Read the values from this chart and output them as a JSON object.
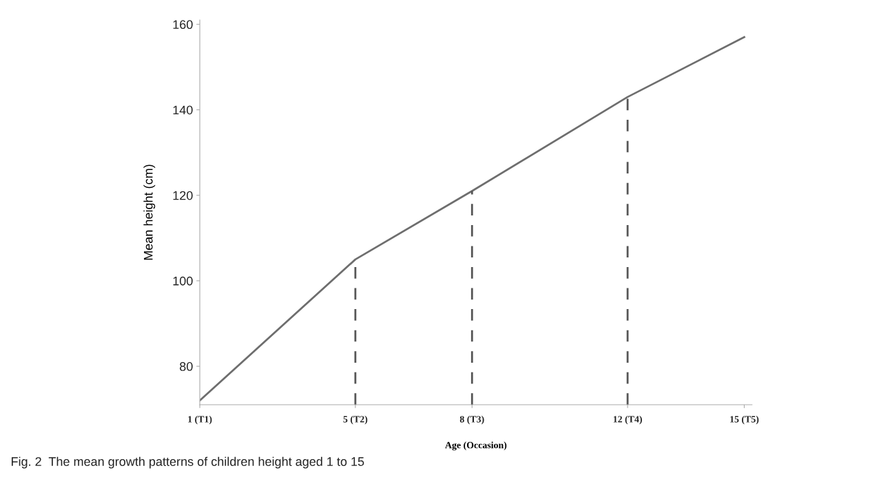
{
  "chart_data": {
    "type": "line",
    "xlabel": "Age (Occasion)",
    "ylabel": "Mean height (cm)",
    "categories": [
      "1 (T1)",
      null,
      null,
      null,
      "5 (T2)",
      null,
      null,
      "8 (T3)",
      null,
      null,
      null,
      "12 (T4)",
      null,
      null,
      "15 (T5)"
    ],
    "series": [
      {
        "color": "#6e6e6e",
        "values": [
          72,
          null,
          null,
          null,
          105,
          null,
          null,
          121,
          null,
          null,
          null,
          143,
          null,
          null,
          157
        ]
      }
    ],
    "ylim": [
      71,
      161
    ],
    "yticks": [
      80,
      100,
      120,
      140,
      160
    ],
    "ref_lines": [
      {
        "axis": "x",
        "value": "5 (T2)",
        "color": "#555555",
        "line_style": "dashed"
      },
      {
        "axis": "x",
        "value": "8 (T3)",
        "color": "#555555",
        "line_style": "dashed"
      },
      {
        "axis": "x",
        "value": "12 (T4)",
        "color": "#555555",
        "line_style": "dashed"
      }
    ],
    "annotations": [
      "Fig. 2  The mean growth patterns of children height aged 1 to 15"
    ],
    "grid": false,
    "legend": false,
    "marker": "none",
    "line_style": "solid"
  }
}
